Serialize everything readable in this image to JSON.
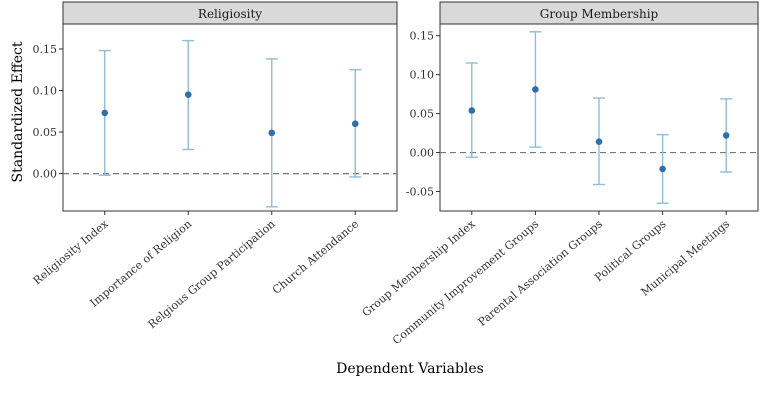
{
  "chart_data": {
    "type": "scatter",
    "ylabel": "Standardized Effect",
    "xlabel": "Dependent Variables",
    "colors": {
      "point": "#2f6fab",
      "errorbar": "#8fbcd9",
      "strip": "#d9d9d9",
      "reference": "#777777"
    },
    "reference_line": 0,
    "panels": [
      {
        "title": "Religiosity",
        "ylim": [
          -0.045,
          0.18
        ],
        "yticks": [
          0.0,
          0.05,
          0.1,
          0.15
        ],
        "ytick_labels": [
          "0.00",
          "0.05",
          "0.10",
          "0.15"
        ],
        "categories": [
          "Religiosity Index",
          "Importance of Religion",
          "Relgious Group Participation",
          "Church Attendance"
        ],
        "estimates": [
          0.073,
          0.095,
          0.049,
          0.06
        ],
        "lower": [
          -0.002,
          0.029,
          -0.04,
          -0.004
        ],
        "upper": [
          0.148,
          0.16,
          0.138,
          0.125
        ]
      },
      {
        "title": "Group Membership",
        "ylim": [
          -0.075,
          0.165
        ],
        "yticks": [
          -0.05,
          0.0,
          0.05,
          0.1,
          0.15
        ],
        "ytick_labels": [
          "-0.05",
          "0.00",
          "0.05",
          "0.10",
          "0.15"
        ],
        "categories": [
          "Group Membership Index",
          "Community Improvement Groups",
          "Parental Association Groups",
          "Political Groups",
          "Municipal Meetings"
        ],
        "estimates": [
          0.054,
          0.081,
          0.014,
          -0.021,
          0.022
        ],
        "lower": [
          -0.006,
          0.007,
          -0.041,
          -0.065,
          -0.025
        ],
        "upper": [
          0.115,
          0.155,
          0.07,
          0.023,
          0.069
        ]
      }
    ]
  }
}
